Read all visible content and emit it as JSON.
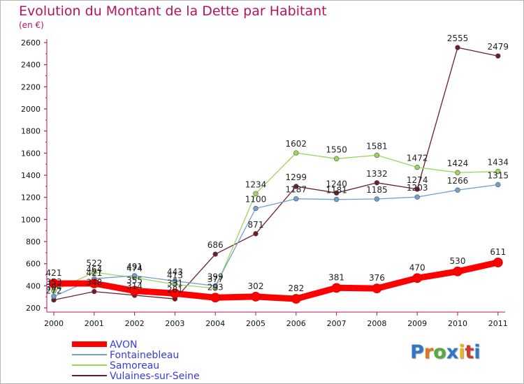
{
  "header": {
    "title": "Evolution du Montant de la Dette par Habitant",
    "subtitle": "(en €)"
  },
  "brand": {
    "letters": [
      "P",
      "r",
      "o",
      "x",
      "i",
      "t",
      "i"
    ],
    "colors": [
      "#2f78c8",
      "#e8731c",
      "#5aa93c",
      "#2f78c8",
      "#e8b51c",
      "#d03a2a",
      "#2f78c8"
    ]
  },
  "chart_data": {
    "type": "line",
    "x": [
      "2000",
      "2001",
      "2002",
      "2003",
      "2004",
      "2005",
      "2006",
      "2007",
      "2008",
      "2009",
      "2010",
      "2011"
    ],
    "ylim": [
      200,
      2600
    ],
    "yticks": [
      200,
      400,
      600,
      800,
      1000,
      1200,
      1400,
      1600,
      1800,
      2000,
      2200,
      2400,
      2600
    ],
    "grid": false,
    "legend_position": "bottom-left",
    "series": [
      {
        "name": "Vulaines-sur-Seine",
        "color": "#6b1e2a",
        "width": 1.3,
        "values": [
          272,
          348,
          314,
          281,
          686,
          871,
          1299,
          1240,
          1332,
          1274,
          2555,
          2479
        ]
      },
      {
        "name": "Samoreau",
        "color": "#9ad65c",
        "width": 1.3,
        "values": [
          353,
          522,
          474,
          413,
          377,
          1234,
          1602,
          1550,
          1581,
          1472,
          1424,
          1434
        ]
      },
      {
        "name": "Fontainebleau",
        "color": "#6fa0cf",
        "width": 1.3,
        "values": [
          304,
          464,
          491,
          443,
          399,
          1100,
          1187,
          1181,
          1185,
          1203,
          1266,
          1315
        ]
      },
      {
        "name": "AVON",
        "color": "#ff0000",
        "width": 9,
        "values": [
          421,
          421,
          355,
          331,
          293,
          302,
          282,
          381,
          376,
          470,
          530,
          611
        ]
      }
    ]
  }
}
